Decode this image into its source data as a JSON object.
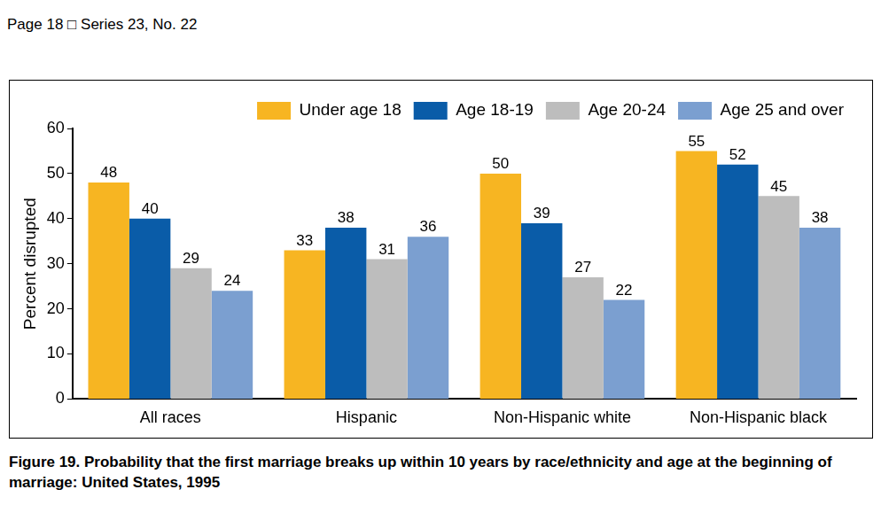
{
  "header": "Page 18 □ Series 23, No. 22",
  "chart_data": {
    "type": "bar",
    "title": "Figure 19. Probability that the first marriage breaks up within 10 years by race/ethnicity and age at the beginning of marriage: United States, 1995",
    "y_label": "Percent disrupted",
    "categories": [
      "All races",
      "Hispanic",
      "Non-Hispanic white",
      "Non-Hispanic black"
    ],
    "series": [
      {
        "name": "Under age 18",
        "color": "#f7b522",
        "values": [
          48,
          33,
          50,
          55
        ]
      },
      {
        "name": "Age 18-19",
        "color": "#0a5ca8",
        "values": [
          40,
          38,
          39,
          52
        ]
      },
      {
        "name": "Age 20-24",
        "color": "#bdbdbd",
        "values": [
          29,
          31,
          27,
          45
        ]
      },
      {
        "name": "Age 25 and over",
        "color": "#7b9fd0",
        "values": [
          24,
          36,
          22,
          38
        ]
      }
    ],
    "ylim": [
      0,
      60
    ],
    "yticks": [
      0,
      10,
      20,
      30,
      40,
      50,
      60
    ],
    "grid": false,
    "legend": "top right",
    "data_labels": true
  }
}
